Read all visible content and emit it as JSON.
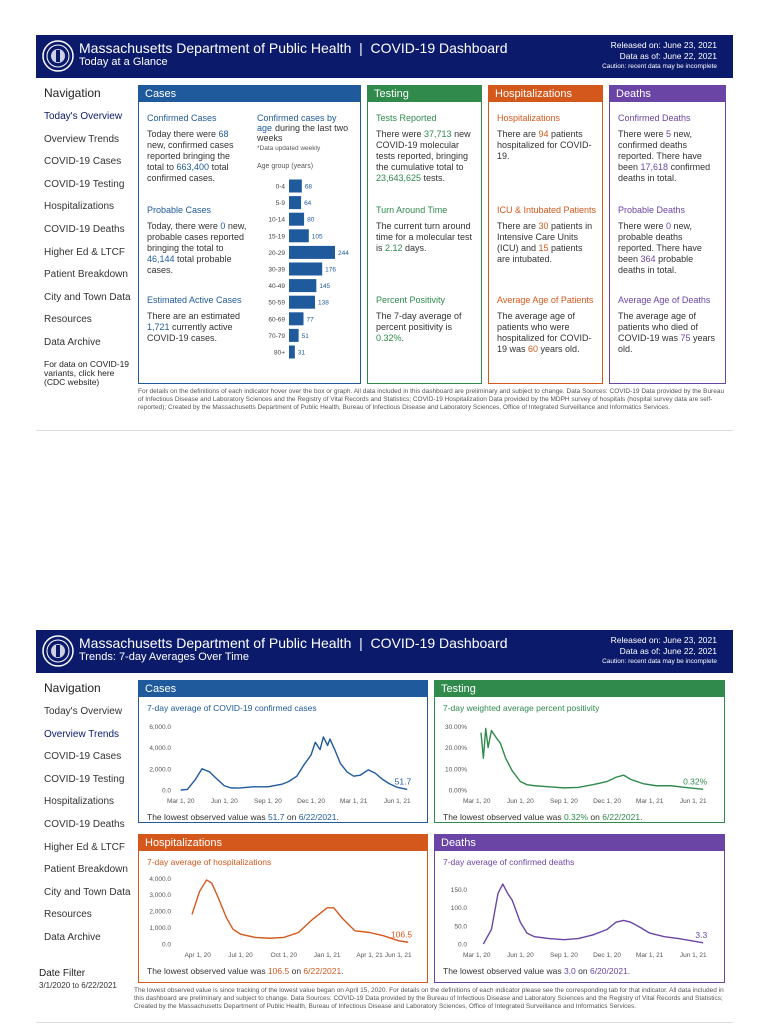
{
  "pages": [
    {
      "header": {
        "title": "Massachusetts Department of Public Health  |  COVID-19 Dashboard",
        "subtitle": "Today at a Glance",
        "released": "Released on: June 23, 2021",
        "data_as_of": "Data as of: June 22, 2021",
        "caution": "Caution: recent data may be incomplete"
      },
      "navigation": {
        "title": "Navigation",
        "items": [
          "Today's Overview",
          "Overview Trends",
          "COVID-19 Cases",
          "COVID-19 Testing",
          "Hospitalizations",
          "COVID-19 Deaths",
          "Higher Ed & LTCF",
          "Patient Breakdown",
          "City and Town Data",
          "Resources",
          "Data Archive"
        ],
        "variants_note": "For data on COVID-19 variants, click here (CDC website)"
      },
      "panels": [
        {
          "title": "Cases",
          "color": "#1f5a9c",
          "sections": [
            {
              "heading": "Confirmed Cases",
              "text": [
                "Today there were ",
                "68",
                " new, confirmed cases reported bringing the total to ",
                "663,400",
                " total confirmed cases."
              ]
            },
            {
              "heading": "Probable Cases",
              "text": [
                "Today, there were ",
                "0",
                " new, probable cases reported bringing the total to ",
                "46,144",
                " total probable cases."
              ]
            },
            {
              "heading": "Estimated Active Cases",
              "text": [
                "There are an estimated ",
                "1,721",
                " currently active COVID-19 cases."
              ]
            }
          ],
          "age_chart": {
            "type": "bar",
            "title": "Confirmed cases by age",
            "subtitle": "during the last two weeks",
            "note": "*Data updated weekly",
            "axis_label": "Age group (years)",
            "categories": [
              "0-4",
              "5-9",
              "10-14",
              "15-19",
              "20-29",
              "30-39",
              "40-49",
              "50-59",
              "60-69",
              "70-79",
              "80+"
            ],
            "values": [
              68,
              64,
              80,
              105,
              244,
              176,
              145,
              138,
              77,
              51,
              31
            ],
            "color": "#1f5a9c"
          }
        },
        {
          "title": "Testing",
          "color": "#2f8a4c",
          "sections": [
            {
              "heading": "Tests Reported",
              "text": [
                "There were ",
                "37,713",
                " new COVID-19 molecular tests reported, bringing the cumulative total to ",
                "23,643,625",
                " tests."
              ]
            },
            {
              "heading": "Turn Around Time",
              "text": [
                "The current turn around time for a molecular test is ",
                "2.12",
                " days."
              ]
            },
            {
              "heading": "Percent Positivity",
              "text": [
                "The 7-day average of percent positivity is ",
                "0.32%",
                "."
              ]
            }
          ]
        },
        {
          "title": "Hospitalizations",
          "color": "#d4581c",
          "sections": [
            {
              "heading": "Hospitalizations",
              "text": [
                "There are ",
                "94",
                " patients hospitalized for COVID-19."
              ]
            },
            {
              "heading": "ICU & Intubated Patients",
              "text": [
                "There are ",
                "30",
                " patients in Intensive Care Units (ICU) and ",
                "15",
                " patients are intubated."
              ]
            },
            {
              "heading": "Average Age of Patients",
              "text": [
                "The average age of patients who were hospitalized for COVID-19 was ",
                "60",
                " years old."
              ]
            }
          ]
        },
        {
          "title": "Deaths",
          "color": "#6b45a6",
          "sections": [
            {
              "heading": "Confirmed Deaths",
              "text": [
                "There were ",
                "5",
                " new, confirmed deaths reported. There have been ",
                "17,618",
                " confirmed deaths in total."
              ]
            },
            {
              "heading": "Probable Deaths",
              "text": [
                "There were ",
                "0",
                " new, probable deaths reported. There have been ",
                "364",
                " probable deaths in total."
              ]
            },
            {
              "heading": "Average Age of Deaths",
              "text": [
                "The average age of patients who died of COVID-19 was ",
                "75",
                " years old."
              ]
            }
          ]
        }
      ],
      "footer": "For details on the definitions of each indicator hover over the box or graph. All data included in this dashboard are preliminary and subject to change. Data Sources: COVID-19 Data provided by the Bureau of Infectious Disease and Laboratory Sciences and the Registry of Vital Records and Statistics; COVID-19 Hospitalization Data provided by the MDPH survey of hospitals (hospital survey data are self-reported); Created by the Massachusetts Department of Public Health, Bureau of Infectious Disease and Laboratory Sciences, Office of Integrated Surveillance and Informatics Services."
    },
    {
      "header": {
        "title": "Massachusetts Department of Public Health  |  COVID-19 Dashboard",
        "subtitle": "Trends: 7-day Averages Over Time",
        "released": "Released on: June 23, 2021",
        "data_as_of": "Data as of: June 22, 2021",
        "caution": "Caution: recent data may be incomplete"
      },
      "navigation": {
        "title": "Navigation",
        "items": [
          "Today's Overview",
          "Overview Trends",
          "COVID-19 Cases",
          "COVID-19 Testing",
          "Hospitalizations",
          "COVID-19 Deaths",
          "Higher Ed & LTCF",
          "Patient Breakdown",
          "City and Town Data",
          "Resources",
          "Data Archive"
        ]
      },
      "date_filter": {
        "title": "Date Filter",
        "range": "3/1/2020 to 6/22/2021"
      },
      "panels": [
        {
          "title": "Cases",
          "color": "#1f5a9c",
          "chart": {
            "type": "line",
            "title": "7-day average of COVID-19 confirmed cases",
            "color": "#1f5a9c",
            "x": [
              "2020-03-01",
              "2020-03-15",
              "2020-04-01",
              "2020-04-15",
              "2020-05-01",
              "2020-05-15",
              "2020-06-01",
              "2020-06-15",
              "2020-07-01",
              "2020-08-01",
              "2020-09-01",
              "2020-10-01",
              "2020-10-15",
              "2020-11-01",
              "2020-11-15",
              "2020-12-01",
              "2020-12-10",
              "2020-12-20",
              "2020-12-27",
              "2021-01-05",
              "2021-01-10",
              "2021-01-20",
              "2021-02-01",
              "2021-02-15",
              "2021-03-01",
              "2021-03-15",
              "2021-04-01",
              "2021-04-15",
              "2021-05-01",
              "2021-05-15",
              "2021-06-01",
              "2021-06-22"
            ],
            "values": [
              0,
              50,
              1000,
              2000,
              1700,
              1100,
              400,
              200,
              180,
              300,
              300,
              550,
              800,
              1300,
              2300,
              3300,
              4500,
              3800,
              5000,
              4200,
              4800,
              3800,
              2500,
              1700,
              1300,
              1400,
              1900,
              1600,
              1000,
              600,
              250,
              51.7
            ],
            "xlim": [
              "2020-02-20",
              "2021-06-30"
            ],
            "ylim": [
              0,
              6500
            ],
            "xticks": [
              {
                "value": "2020-03-01",
                "label": "Mar 1, 20"
              },
              {
                "value": "2020-06-01",
                "label": "Jun 1, 20"
              },
              {
                "value": "2020-09-01",
                "label": "Sep 1, 20"
              },
              {
                "value": "2020-12-01",
                "label": "Dec 1, 20"
              },
              {
                "value": "2021-03-01",
                "label": "Mar 1, 21"
              },
              {
                "value": "2021-06-01",
                "label": "Jun 1, 21"
              }
            ],
            "yticks": [
              {
                "value": 0,
                "label": "0.0"
              },
              {
                "value": 2000,
                "label": "2,000.0"
              },
              {
                "value": 4000,
                "label": "4,000.0"
              },
              {
                "value": 6000,
                "label": "6,000.0"
              }
            ],
            "end_label": "51.7",
            "note": [
              "The lowest observed value was ",
              "51.7",
              " on ",
              "6/22/2021",
              "."
            ]
          }
        },
        {
          "title": "Testing",
          "color": "#2f8a4c",
          "chart": {
            "type": "line",
            "title": "7-day weighted average percent positivity",
            "color": "#2f8a4c",
            "x": [
              "2020-03-10",
              "2020-03-15",
              "2020-03-20",
              "2020-03-25",
              "2020-04-01",
              "2020-04-10",
              "2020-04-20",
              "2020-05-01",
              "2020-05-15",
              "2020-06-01",
              "2020-06-15",
              "2020-07-01",
              "2020-08-01",
              "2020-09-01",
              "2020-10-01",
              "2020-11-01",
              "2020-12-01",
              "2020-12-20",
              "2021-01-05",
              "2021-01-20",
              "2021-02-15",
              "2021-03-15",
              "2021-04-15",
              "2021-05-15",
              "2021-06-22"
            ],
            "values": [
              27,
              15,
              29,
              20,
              28,
              25,
              22,
              15,
              9,
              4,
              2.5,
              2,
              1.5,
              1,
              1.2,
              2.5,
              4,
              6,
              7,
              5,
              3,
              2,
              2,
              1.2,
              0.32
            ],
            "xlim": [
              "2020-02-20",
              "2021-06-30"
            ],
            "ylim": [
              0,
              32.5
            ],
            "xticks": [
              {
                "value": "2020-03-01",
                "label": "Mar 1, 20"
              },
              {
                "value": "2020-06-01",
                "label": "Jun 1, 20"
              },
              {
                "value": "2020-09-01",
                "label": "Sep 1, 20"
              },
              {
                "value": "2020-12-01",
                "label": "Dec 1, 20"
              },
              {
                "value": "2021-03-01",
                "label": "Mar 1, 21"
              },
              {
                "value": "2021-06-01",
                "label": "Jun 1, 21"
              }
            ],
            "yticks": [
              {
                "value": 0,
                "label": "0.00%"
              },
              {
                "value": 10,
                "label": "10.00%"
              },
              {
                "value": 20,
                "label": "20.00%"
              },
              {
                "value": 30,
                "label": "30.00%"
              }
            ],
            "end_label": "0.32%",
            "note": [
              "The lowest observed value was ",
              "0.32%",
              " on ",
              "6/22/2021",
              "."
            ]
          }
        },
        {
          "title": "Hospitalizations",
          "color": "#d4581c",
          "chart": {
            "type": "line",
            "title": "7-day average of hospitalizations",
            "color": "#d4581c",
            "x": [
              "2020-03-20",
              "2020-04-05",
              "2020-04-20",
              "2020-05-01",
              "2020-05-15",
              "2020-06-01",
              "2020-06-15",
              "2020-07-01",
              "2020-08-01",
              "2020-09-01",
              "2020-10-01",
              "2020-11-01",
              "2020-12-01",
              "2021-01-01",
              "2021-01-15",
              "2021-02-01",
              "2021-03-01",
              "2021-04-01",
              "2021-05-01",
              "2021-06-01",
              "2021-06-22"
            ],
            "values": [
              1800,
              3200,
              3900,
              3700,
              2800,
              1600,
              900,
              600,
              400,
              350,
              400,
              700,
              1500,
              2200,
              2200,
              1600,
              800,
              700,
              500,
              200,
              106.5
            ],
            "xlim": [
              "2020-02-15",
              "2021-06-28"
            ],
            "ylim": [
              0,
              4200
            ],
            "xticks": [
              {
                "value": "2020-04-01",
                "label": "Apr 1, 20"
              },
              {
                "value": "2020-07-01",
                "label": "Jul 1, 20"
              },
              {
                "value": "2020-10-01",
                "label": "Oct 1, 20"
              },
              {
                "value": "2021-01-01",
                "label": "Jan 1, 21"
              },
              {
                "value": "2021-04-01",
                "label": "Apr 1, 21"
              },
              {
                "value": "2021-06-01",
                "label": "Jun 1, 21"
              }
            ],
            "yticks": [
              {
                "value": 0,
                "label": "0.0"
              },
              {
                "value": 1000,
                "label": "1,000.0"
              },
              {
                "value": 2000,
                "label": "2,000.0"
              },
              {
                "value": 3000,
                "label": "3,000.0"
              },
              {
                "value": 4000,
                "label": "4,000.0"
              }
            ],
            "end_label": "106.5",
            "note": [
              "The lowest observed value was ",
              "106.5",
              " on ",
              "6/22/2021",
              "."
            ]
          }
        },
        {
          "title": "Deaths",
          "color": "#6b45a6",
          "chart": {
            "type": "line",
            "title": "7-day average of confirmed deaths",
            "color": "#6b45a6",
            "x": [
              "2020-03-15",
              "2020-04-01",
              "2020-04-15",
              "2020-04-25",
              "2020-05-05",
              "2020-05-15",
              "2020-06-01",
              "2020-06-15",
              "2020-07-01",
              "2020-08-01",
              "2020-09-01",
              "2020-10-01",
              "2020-11-01",
              "2020-12-01",
              "2020-12-20",
              "2021-01-05",
              "2021-01-20",
              "2021-02-10",
              "2021-03-01",
              "2021-04-01",
              "2021-05-01",
              "2021-06-01",
              "2021-06-22"
            ],
            "values": [
              0,
              40,
              140,
              165,
              140,
              120,
              60,
              30,
              20,
              15,
              12,
              15,
              25,
              40,
              60,
              65,
              60,
              45,
              30,
              20,
              15,
              8,
              3.3
            ],
            "xlim": [
              "2020-02-20",
              "2021-06-30"
            ],
            "ylim": [
              0,
              190
            ],
            "xticks": [
              {
                "value": "2020-03-01",
                "label": "Mar 1, 20"
              },
              {
                "value": "2020-06-01",
                "label": "Jun 1, 20"
              },
              {
                "value": "2020-09-01",
                "label": "Sep 1, 20"
              },
              {
                "value": "2020-12-01",
                "label": "Dec 1, 20"
              },
              {
                "value": "2021-03-01",
                "label": "Mar 1, 21"
              },
              {
                "value": "2021-06-01",
                "label": "Jun 1, 21"
              }
            ],
            "yticks": [
              {
                "value": 0,
                "label": "0.0"
              },
              {
                "value": 50,
                "label": "50.0"
              },
              {
                "value": 100,
                "label": "100.0"
              },
              {
                "value": 150,
                "label": "150.0"
              }
            ],
            "end_label": "3.3",
            "note": [
              "The lowest observed value was ",
              "3.0",
              " on ",
              "6/20/2021",
              "."
            ]
          }
        }
      ],
      "footer": "The lowest observed value is since tracking of the lowest value began on April 15, 2020. For details on the definitions of each indicator please see the corresponding tab for that indicator. All data included in this dashboard are preliminary and subject to change. Data Sources: COVID-19 Data provided by the Bureau of Infectious Disease and Laboratory Sciences and the Registry of Vital Records and Statistics; Created by the Massachusetts Department of Public Health, Bureau of Infectious Disease and Laboratory Sciences, Office of Integrated Surveillance and Informatics Services."
    }
  ]
}
